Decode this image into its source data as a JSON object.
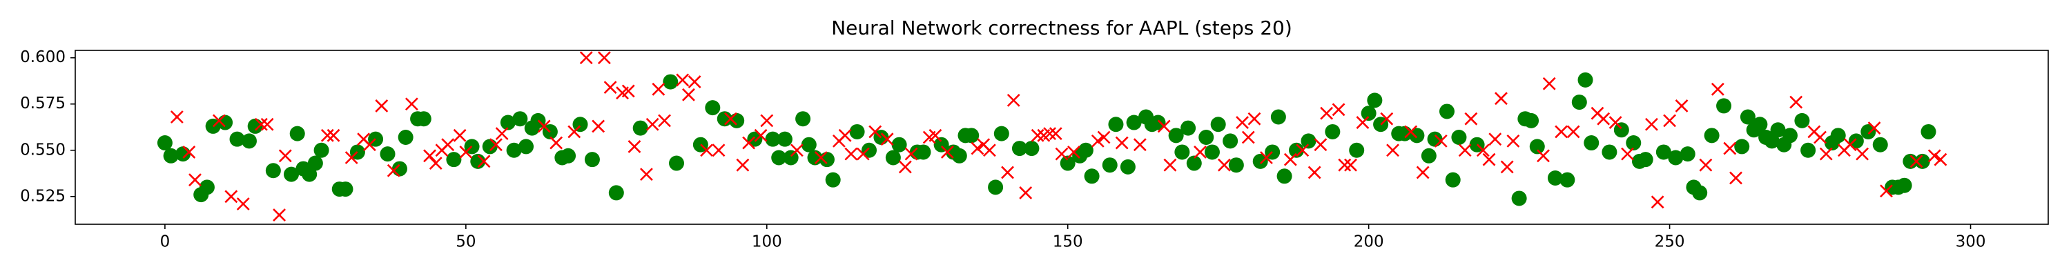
{
  "chart_data": {
    "type": "scatter",
    "title": "Neural Network correctness for AAPL (steps 20)",
    "xlim": [
      -14.9,
      312.9
    ],
    "ylim": [
      0.51,
      0.604
    ],
    "xticks": [
      0,
      50,
      100,
      150,
      200,
      250,
      300
    ],
    "yticks": [
      0.525,
      {
        "value": 0.55,
        "label": "0.550"
      },
      0.575,
      {
        "value": 0.6,
        "label": "0.600"
      }
    ],
    "series": [
      {
        "color": "#008000",
        "marker": "o",
        "x": [
          0,
          1,
          3,
          6,
          7,
          8,
          10,
          12,
          14,
          15,
          18,
          21,
          22,
          23,
          24,
          25,
          26,
          29,
          30,
          32,
          35,
          37,
          39,
          40,
          42,
          43,
          48,
          51,
          52,
          54,
          57,
          58,
          59,
          60,
          61,
          62,
          64,
          66,
          67,
          69,
          71,
          75,
          79,
          84,
          85,
          89,
          91,
          93,
          95,
          98,
          101,
          102,
          103,
          104,
          106,
          107,
          108,
          110,
          111,
          115,
          117,
          119,
          121,
          122,
          125,
          126,
          129,
          131,
          132,
          133,
          134,
          138,
          139,
          142,
          144,
          150,
          152,
          153,
          154,
          157,
          158,
          160,
          161,
          163,
          164,
          165,
          168,
          169,
          170,
          171,
          173,
          174,
          175,
          177,
          178,
          182,
          184,
          185,
          186,
          188,
          190,
          194,
          198,
          200,
          201,
          202,
          205,
          206,
          208,
          210,
          211,
          213,
          214,
          215,
          218,
          225,
          226,
          227,
          228,
          231,
          233,
          235,
          236,
          237,
          240,
          242,
          244,
          245,
          246,
          249,
          251,
          253,
          254,
          255,
          257,
          259,
          262,
          263,
          264,
          265,
          266,
          267,
          268,
          269,
          270,
          272,
          273,
          277,
          278,
          281,
          283,
          285,
          287,
          288,
          289,
          290,
          292,
          293
        ],
        "values": [
          0.554,
          0.547,
          0.548,
          0.526,
          0.53,
          0.563,
          0.565,
          0.556,
          0.555,
          0.563,
          0.539,
          0.537,
          0.559,
          0.54,
          0.537,
          0.543,
          0.55,
          0.529,
          0.529,
          0.549,
          0.556,
          0.548,
          0.54,
          0.557,
          0.567,
          0.567,
          0.545,
          0.552,
          0.544,
          0.552,
          0.565,
          0.55,
          0.567,
          0.552,
          0.562,
          0.566,
          0.56,
          0.546,
          0.547,
          0.564,
          0.545,
          0.527,
          0.562,
          0.587,
          0.543,
          0.553,
          0.573,
          0.567,
          0.566,
          0.556,
          0.556,
          0.546,
          0.556,
          0.546,
          0.567,
          0.553,
          0.546,
          0.545,
          0.534,
          0.56,
          0.55,
          0.557,
          0.546,
          0.553,
          0.549,
          0.549,
          0.553,
          0.549,
          0.547,
          0.558,
          0.558,
          0.53,
          0.559,
          0.551,
          0.551,
          0.543,
          0.547,
          0.55,
          0.536,
          0.542,
          0.564,
          0.541,
          0.565,
          0.568,
          0.564,
          0.565,
          0.558,
          0.549,
          0.562,
          0.543,
          0.557,
          0.549,
          0.564,
          0.555,
          0.542,
          0.544,
          0.549,
          0.568,
          0.536,
          0.55,
          0.555,
          0.56,
          0.55,
          0.57,
          0.577,
          0.564,
          0.559,
          0.559,
          0.558,
          0.547,
          0.556,
          0.571,
          0.534,
          0.557,
          0.553,
          0.524,
          0.567,
          0.566,
          0.552,
          0.535,
          0.534,
          0.576,
          0.588,
          0.554,
          0.549,
          0.561,
          0.554,
          0.544,
          0.545,
          0.549,
          0.546,
          0.548,
          0.53,
          0.527,
          0.558,
          0.574,
          0.552,
          0.568,
          0.561,
          0.564,
          0.557,
          0.555,
          0.561,
          0.553,
          0.558,
          0.566,
          0.55,
          0.554,
          0.558,
          0.555,
          0.56,
          0.553,
          0.53,
          0.53,
          0.531,
          0.544,
          0.544,
          0.56
        ]
      },
      {
        "color": "#ff0000",
        "marker": "x",
        "x": [
          2,
          4,
          5,
          9,
          11,
          13,
          16,
          17,
          19,
          20,
          27,
          28,
          31,
          33,
          34,
          36,
          38,
          41,
          44,
          45,
          46,
          47,
          49,
          50,
          53,
          55,
          56,
          63,
          65,
          68,
          70,
          72,
          73,
          74,
          76,
          77,
          78,
          80,
          81,
          82,
          83,
          86,
          87,
          88,
          90,
          92,
          94,
          96,
          97,
          99,
          100,
          105,
          109,
          112,
          113,
          114,
          116,
          118,
          120,
          123,
          124,
          127,
          128,
          130,
          135,
          136,
          137,
          140,
          141,
          143,
          145,
          146,
          147,
          148,
          149,
          151,
          155,
          156,
          159,
          162,
          166,
          167,
          172,
          176,
          179,
          180,
          181,
          183,
          187,
          189,
          191,
          192,
          193,
          195,
          196,
          197,
          199,
          203,
          204,
          207,
          209,
          212,
          216,
          217,
          219,
          220,
          221,
          222,
          223,
          224,
          229,
          230,
          232,
          234,
          238,
          239,
          241,
          243,
          247,
          248,
          250,
          252,
          256,
          258,
          260,
          261,
          271,
          274,
          275,
          276,
          279,
          280,
          282,
          284,
          286,
          291,
          294,
          295
        ],
        "values": [
          0.568,
          0.549,
          0.534,
          0.566,
          0.525,
          0.521,
          0.564,
          0.564,
          0.515,
          0.547,
          0.558,
          0.558,
          0.546,
          0.556,
          0.553,
          0.574,
          0.539,
          0.575,
          0.547,
          0.543,
          0.55,
          0.553,
          0.558,
          0.549,
          0.544,
          0.553,
          0.559,
          0.563,
          0.554,
          0.56,
          0.6,
          0.563,
          0.6,
          0.584,
          0.581,
          0.582,
          0.552,
          0.537,
          0.564,
          0.583,
          0.566,
          0.588,
          0.58,
          0.587,
          0.55,
          0.55,
          0.567,
          0.542,
          0.554,
          0.558,
          0.566,
          0.55,
          0.546,
          0.555,
          0.558,
          0.548,
          0.548,
          0.56,
          0.556,
          0.541,
          0.548,
          0.557,
          0.558,
          0.549,
          0.551,
          0.553,
          0.55,
          0.538,
          0.577,
          0.527,
          0.558,
          0.558,
          0.559,
          0.559,
          0.548,
          0.549,
          0.555,
          0.557,
          0.554,
          0.553,
          0.563,
          0.542,
          0.549,
          0.542,
          0.565,
          0.557,
          0.567,
          0.546,
          0.545,
          0.55,
          0.538,
          0.553,
          0.57,
          0.572,
          0.542,
          0.542,
          0.565,
          0.567,
          0.55,
          0.56,
          0.538,
          0.555,
          0.55,
          0.567,
          0.55,
          0.545,
          0.556,
          0.578,
          0.541,
          0.555,
          0.547,
          0.586,
          0.56,
          0.56,
          0.57,
          0.567,
          0.565,
          0.548,
          0.564,
          0.522,
          0.566,
          0.574,
          0.542,
          0.583,
          0.551,
          0.535,
          0.576,
          0.56,
          0.557,
          0.548,
          0.55,
          0.553,
          0.548,
          0.562,
          0.528,
          0.544,
          0.547,
          0.545
        ]
      }
    ]
  }
}
